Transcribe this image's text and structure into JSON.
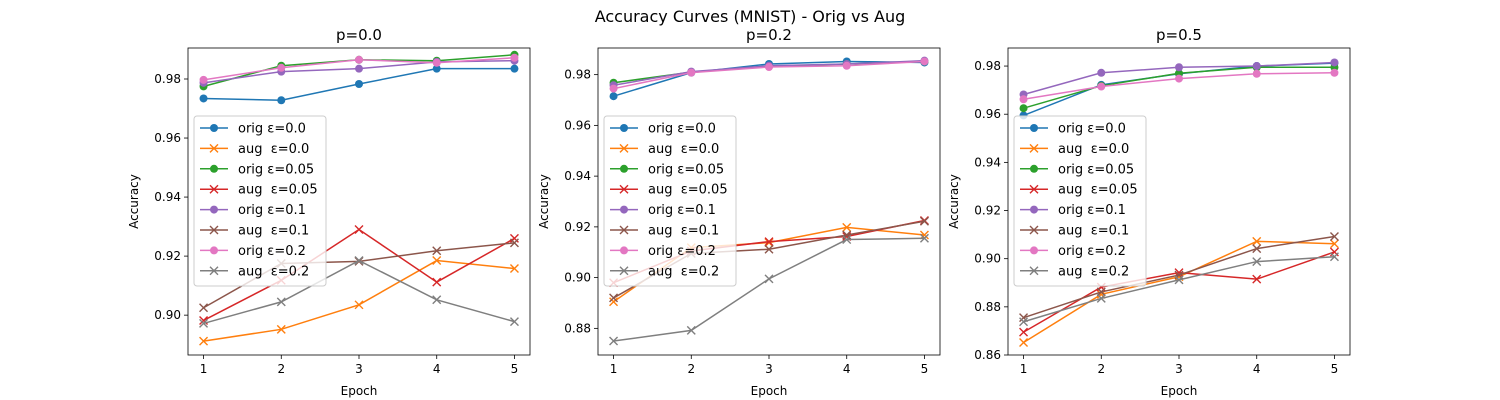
{
  "figure": {
    "title": "Accuracy Curves (MNIST) - Orig vs Aug"
  },
  "legend_labels": [
    "orig ε=0.0",
    "aug  ε=0.0",
    "orig ε=0.05",
    "aug  ε=0.05",
    "orig ε=0.1",
    "aug  ε=0.1",
    "orig ε=0.2",
    "aug  ε=0.2"
  ],
  "series_colors": [
    "#1f77b4",
    "#ff7f0e",
    "#2ca02c",
    "#d62728",
    "#9467bd",
    "#8c564b",
    "#e377c2",
    "#7f7f7f"
  ],
  "series_markers": [
    "circle",
    "x",
    "circle",
    "x",
    "circle",
    "x",
    "circle",
    "x"
  ],
  "chart_data": [
    {
      "type": "line",
      "title": "p=0.0",
      "xlabel": "Epoch",
      "ylabel": "Accuracy",
      "x": [
        1,
        2,
        3,
        4,
        5
      ],
      "xlim": [
        0.8,
        5.2
      ],
      "ylim": [
        0.8865,
        0.9905
      ],
      "yticks": [
        0.9,
        0.92,
        0.94,
        0.96,
        0.98
      ],
      "legend": "center-left",
      "grid": false,
      "series": [
        {
          "name": "orig ε=0.0",
          "values": [
            0.9734,
            0.9728,
            0.9783,
            0.9835,
            0.9835
          ]
        },
        {
          "name": "aug  ε=0.0",
          "values": [
            0.8912,
            0.8952,
            0.9035,
            0.9185,
            0.9158
          ]
        },
        {
          "name": "orig ε=0.05",
          "values": [
            0.9775,
            0.9845,
            0.9865,
            0.9862,
            0.9882
          ]
        },
        {
          "name": "aug  ε=0.05",
          "values": [
            0.8982,
            0.9118,
            0.929,
            0.9112,
            0.926
          ]
        },
        {
          "name": "orig ε=0.1",
          "values": [
            0.9787,
            0.9825,
            0.9835,
            0.9858,
            0.9862
          ]
        },
        {
          "name": "aug  ε=0.1",
          "values": [
            0.9025,
            0.9175,
            0.9182,
            0.9218,
            0.9245
          ]
        },
        {
          "name": "orig ε=0.2",
          "values": [
            0.9797,
            0.9838,
            0.9865,
            0.9855,
            0.9872
          ]
        },
        {
          "name": "aug  ε=0.2",
          "values": [
            0.8972,
            0.9045,
            0.9185,
            0.9052,
            0.8978
          ]
        }
      ]
    },
    {
      "type": "line",
      "title": "p=0.2",
      "xlabel": "Epoch",
      "ylabel": "Accuracy",
      "x": [
        1,
        2,
        3,
        4,
        5
      ],
      "xlim": [
        0.8,
        5.2
      ],
      "ylim": [
        0.8695,
        0.9905
      ],
      "yticks": [
        0.88,
        0.9,
        0.92,
        0.94,
        0.96,
        0.98
      ],
      "legend": "center-left",
      "grid": false,
      "series": [
        {
          "name": "orig ε=0.0",
          "values": [
            0.9715,
            0.9808,
            0.9842,
            0.9852,
            0.9848
          ]
        },
        {
          "name": "aug  ε=0.0",
          "values": [
            0.8905,
            0.9118,
            0.9138,
            0.9198,
            0.9168
          ]
        },
        {
          "name": "orig ε=0.05",
          "values": [
            0.9768,
            0.981,
            0.9832,
            0.9842,
            0.9852
          ]
        },
        {
          "name": "aug  ε=0.05",
          "values": [
            0.898,
            0.9105,
            0.9142,
            0.9162,
            0.9225
          ]
        },
        {
          "name": "orig ε=0.1",
          "values": [
            0.9758,
            0.9812,
            0.9835,
            0.9842,
            0.9855
          ]
        },
        {
          "name": "aug  ε=0.1",
          "values": [
            0.892,
            0.9095,
            0.9112,
            0.9168,
            0.9222
          ]
        },
        {
          "name": "orig ε=0.2",
          "values": [
            0.9745,
            0.9808,
            0.983,
            0.9835,
            0.9852
          ]
        },
        {
          "name": "aug  ε=0.2",
          "values": [
            0.875,
            0.8792,
            0.8995,
            0.915,
            0.9155
          ]
        }
      ]
    },
    {
      "type": "line",
      "title": "p=0.5",
      "xlabel": "Epoch",
      "ylabel": "Accuracy",
      "x": [
        1,
        2,
        3,
        4,
        5
      ],
      "xlim": [
        0.8,
        5.2
      ],
      "ylim": [
        0.86,
        0.9875
      ],
      "yticks": [
        0.86,
        0.88,
        0.9,
        0.92,
        0.94,
        0.96,
        0.98
      ],
      "legend": "center-left",
      "grid": false,
      "series": [
        {
          "name": "orig ε=0.0",
          "values": [
            0.9595,
            0.9722,
            0.9768,
            0.98,
            0.9812
          ]
        },
        {
          "name": "aug  ε=0.0",
          "values": [
            0.8652,
            0.8852,
            0.8925,
            0.9072,
            0.9062
          ]
        },
        {
          "name": "orig ε=0.05",
          "values": [
            0.9625,
            0.9718,
            0.977,
            0.9795,
            0.9795
          ]
        },
        {
          "name": "aug  ε=0.05",
          "values": [
            0.8695,
            0.8882,
            0.8942,
            0.8915,
            0.9028
          ]
        },
        {
          "name": "orig ε=0.1",
          "values": [
            0.9682,
            0.9772,
            0.9795,
            0.98,
            0.9815
          ]
        },
        {
          "name": "aug  ε=0.1",
          "values": [
            0.8755,
            0.8862,
            0.8932,
            0.9042,
            0.9092
          ]
        },
        {
          "name": "orig ε=0.2",
          "values": [
            0.9662,
            0.9715,
            0.9748,
            0.9768,
            0.9772
          ]
        },
        {
          "name": "aug  ε=0.2",
          "values": [
            0.8738,
            0.8835,
            0.8912,
            0.8988,
            0.9008
          ]
        }
      ]
    }
  ]
}
